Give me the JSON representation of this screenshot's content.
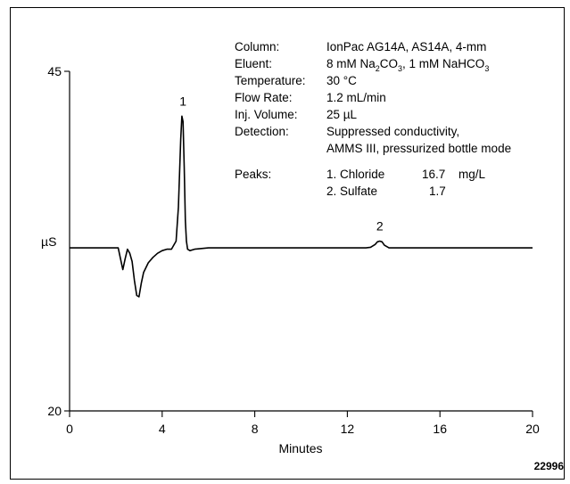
{
  "chart_data": {
    "type": "line",
    "xlabel": "Minutes",
    "ylabel": "µS",
    "xlim": [
      0,
      20
    ],
    "ylim": [
      20,
      45
    ],
    "xticks": [
      "0",
      "4",
      "8",
      "12",
      "16",
      "20"
    ],
    "yticks": [
      "20",
      "45"
    ],
    "series": [
      {
        "x": [
          0,
          2.1,
          2.2,
          2.3,
          2.4,
          2.5,
          2.6,
          2.7,
          2.8,
          2.9,
          3.0,
          3.1,
          3.2,
          3.4,
          3.6,
          3.8,
          4.0,
          4.2,
          4.4,
          4.6,
          4.7,
          4.8,
          4.85,
          4.9,
          4.95,
          5.0,
          5.05,
          5.1,
          5.2,
          5.4,
          6,
          8,
          10,
          12,
          12.8,
          13.0,
          13.2,
          13.3,
          13.4,
          13.5,
          13.6,
          13.8,
          14.2,
          16,
          18,
          20
        ],
        "y": [
          32.0,
          32.0,
          31.2,
          30.4,
          31.2,
          31.9,
          31.6,
          31.0,
          29.6,
          28.5,
          28.4,
          29.4,
          30.2,
          30.9,
          31.3,
          31.6,
          31.8,
          31.9,
          31.9,
          32.5,
          35.0,
          40.0,
          41.7,
          41.3,
          38.0,
          34.0,
          32.5,
          31.9,
          31.8,
          31.9,
          32.0,
          32.0,
          32.0,
          32.0,
          32.0,
          32.05,
          32.25,
          32.45,
          32.5,
          32.45,
          32.2,
          32.0,
          32.0,
          32.0,
          32.0,
          32.0
        ]
      }
    ],
    "peak_labels": [
      {
        "label": "1",
        "x": 4.9,
        "y": 41.7
      },
      {
        "label": "2",
        "x": 13.4,
        "y": 32.5
      }
    ],
    "conditions": [
      {
        "label": "Column:",
        "value": "IonPac AG14A, AS14A, 4-mm"
      },
      {
        "label": "Eluent:",
        "value": "8 mM Na2CO3, 1 mM NaHCO3"
      },
      {
        "label": "Temperature:",
        "value": "30 °C"
      },
      {
        "label": "Flow Rate:",
        "value": "1.2 mL/min"
      },
      {
        "label": "Inj. Volume:",
        "value": "25 µL"
      },
      {
        "label": "Detection:",
        "value": "Suppressed conductivity,"
      },
      {
        "label": "",
        "value": "AMMS III, pressurized bottle mode"
      }
    ],
    "peaks_table": {
      "label": "Peaks:",
      "rows": [
        {
          "name": "1. Chloride",
          "value": "16.7",
          "unit": "mg/L"
        },
        {
          "name": "2. Sulfate",
          "value": "1.7",
          "unit": ""
        }
      ]
    },
    "figure_id": "22996"
  }
}
